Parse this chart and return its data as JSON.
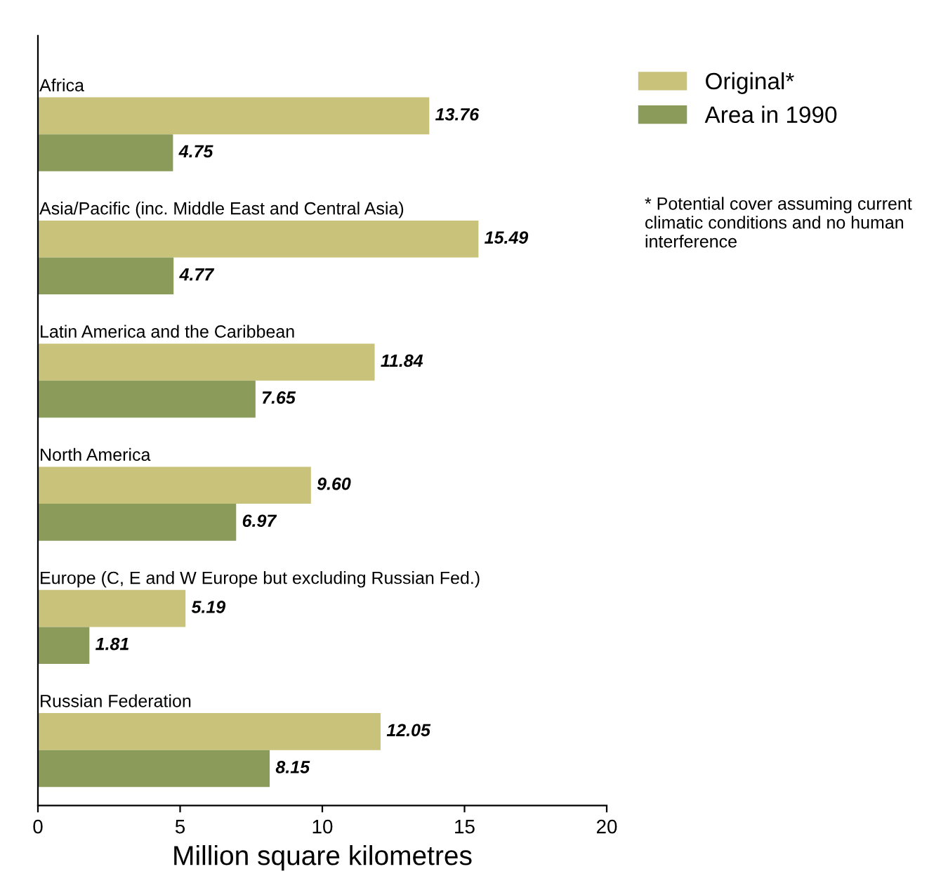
{
  "chart_data": {
    "type": "bar",
    "orientation": "horizontal",
    "xlabel": "Million square kilometres",
    "categories": [
      "Africa",
      "Asia/Pacific (inc. Middle East and Central Asia)",
      "Latin America and the Caribbean",
      "North America",
      "Europe (C, E and W Europe but excluding Russian Fed.)",
      "Russian Federation"
    ],
    "series": [
      {
        "name": "Original*",
        "color": "#c9c27a",
        "values": [
          13.76,
          15.49,
          11.84,
          9.6,
          5.19,
          12.05
        ],
        "value_labels": [
          "13.76",
          "15.49",
          "11.84",
          "9.60",
          "5.19",
          "12.05"
        ]
      },
      {
        "name": "Area in 1990",
        "color": "#8a9b5a",
        "values": [
          4.75,
          4.77,
          7.65,
          6.97,
          1.81,
          8.15
        ],
        "value_labels": [
          "4.75",
          "4.77",
          "7.65",
          "6.97",
          "1.81",
          "8.15"
        ]
      }
    ],
    "xlim": [
      0,
      20
    ],
    "xticks": [
      0,
      5,
      10,
      15,
      20
    ],
    "grid": false,
    "legend": "right",
    "annotations": [
      "* Potential cover assuming current climatic conditions and no human interference"
    ]
  }
}
